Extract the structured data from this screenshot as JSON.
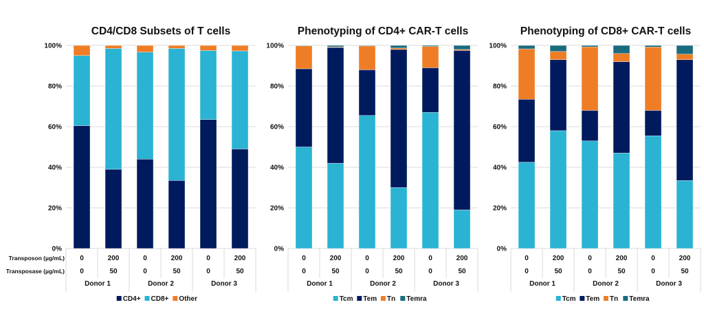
{
  "colors": {
    "navy": "#001a5e",
    "cyan": "#2ab3d3",
    "orange": "#ee7d26",
    "teal": "#1b6b7e"
  },
  "row_labels": {
    "transposon": "Transposon (µg/mL)",
    "transposase": "Transposase (µg/mL)"
  },
  "chart_data": [
    {
      "type": "bar",
      "stacked": true,
      "title": "CD4/CD8 Subsets of T cells",
      "yticks": [
        "0%",
        "20%",
        "40%",
        "60%",
        "80%",
        "100%"
      ],
      "ylim": [
        0,
        100
      ],
      "grid": true,
      "legend": "bottom",
      "transposon": [
        "0",
        "200",
        "0",
        "200",
        "0",
        "200"
      ],
      "transposase": [
        "0",
        "50",
        "0",
        "50",
        "0",
        "50"
      ],
      "groups": [
        "Donor 1",
        "Donor 2",
        "Donor 3"
      ],
      "series": [
        {
          "name": "CD4+",
          "color": "#001a5e",
          "values": [
            60.5,
            39,
            44,
            33.5,
            63.5,
            49
          ]
        },
        {
          "name": "CD8+",
          "color": "#2ab3d3",
          "values": [
            34.5,
            59.5,
            52.7,
            65,
            34,
            48.3
          ]
        },
        {
          "name": "Other",
          "color": "#ee7d26",
          "values": [
            5,
            1.5,
            3.3,
            1.5,
            2.5,
            2.7
          ]
        }
      ]
    },
    {
      "type": "bar",
      "stacked": true,
      "title": "Phenotyping of CD4+ CAR-T cells",
      "yticks": [
        "0%",
        "20%",
        "40%",
        "60%",
        "80%",
        "100%"
      ],
      "ylim": [
        0,
        100
      ],
      "grid": true,
      "legend": "bottom",
      "transposon": [
        "0",
        "200",
        "0",
        "200",
        "0",
        "200"
      ],
      "transposase": [
        "0",
        "50",
        "0",
        "50",
        "0",
        "50"
      ],
      "groups": [
        "Donor 1",
        "Donor 2",
        "Donor 3"
      ],
      "series": [
        {
          "name": "Tcm",
          "color": "#2ab3d3",
          "values": [
            50,
            42,
            65.5,
            30,
            67,
            19
          ]
        },
        {
          "name": "Tem",
          "color": "#001a5e",
          "values": [
            38.5,
            57,
            22.5,
            68,
            22,
            78.5
          ]
        },
        {
          "name": "Tn",
          "color": "#ee7d26",
          "values": [
            11.3,
            0.3,
            11.7,
            0.7,
            10.5,
            0.5
          ]
        },
        {
          "name": "Temra",
          "color": "#1b6b7e",
          "values": [
            0.2,
            0.7,
            0.3,
            1.3,
            0.5,
            2
          ]
        }
      ]
    },
    {
      "type": "bar",
      "stacked": true,
      "title": "Phenotyping of CD8+ CAR-T cells",
      "yticks": [
        "0%",
        "20%",
        "40%",
        "60%",
        "80%",
        "100%"
      ],
      "ylim": [
        0,
        100
      ],
      "grid": true,
      "legend": "bottom",
      "transposon": [
        "0",
        "200",
        "0",
        "200",
        "0",
        "200"
      ],
      "transposase": [
        "0",
        "50",
        "0",
        "50",
        "0",
        "50"
      ],
      "groups": [
        "Donor 1",
        "Donor 2",
        "Donor 3"
      ],
      "series": [
        {
          "name": "Tcm",
          "color": "#2ab3d3",
          "values": [
            42.5,
            58,
            53,
            47,
            55.5,
            33.5
          ]
        },
        {
          "name": "Tem",
          "color": "#001a5e",
          "values": [
            31,
            35,
            15,
            45,
            12.5,
            59.5
          ]
        },
        {
          "name": "Tn",
          "color": "#ee7d26",
          "values": [
            24.8,
            4,
            31.3,
            4,
            31.2,
            2.7
          ]
        },
        {
          "name": "Temra",
          "color": "#1b6b7e",
          "values": [
            1.7,
            3,
            0.7,
            4,
            0.8,
            4.3
          ]
        }
      ]
    }
  ]
}
